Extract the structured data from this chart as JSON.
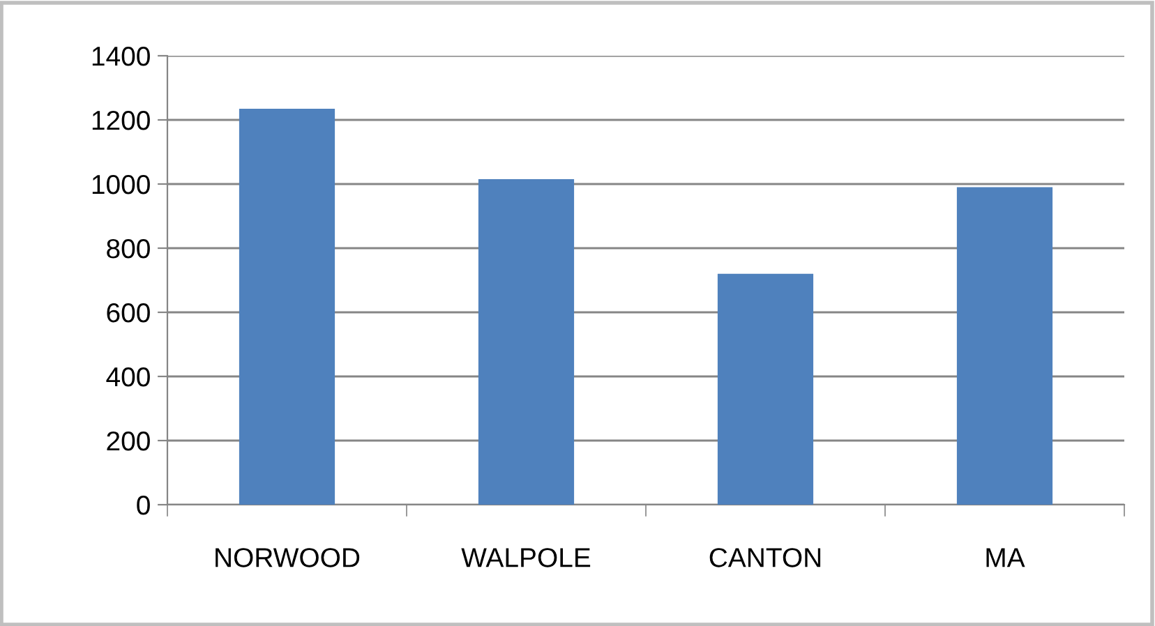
{
  "chart_data": {
    "type": "bar",
    "categories": [
      "NORWOOD",
      "WALPOLE",
      "CANTON",
      "MA"
    ],
    "values": [
      1235,
      1015,
      720,
      990
    ],
    "color": "#4f81bd",
    "ylim": [
      0,
      1400
    ],
    "yticks": [
      0,
      200,
      400,
      600,
      800,
      1000,
      1200,
      1400
    ],
    "grid": "y",
    "legend": false
  }
}
